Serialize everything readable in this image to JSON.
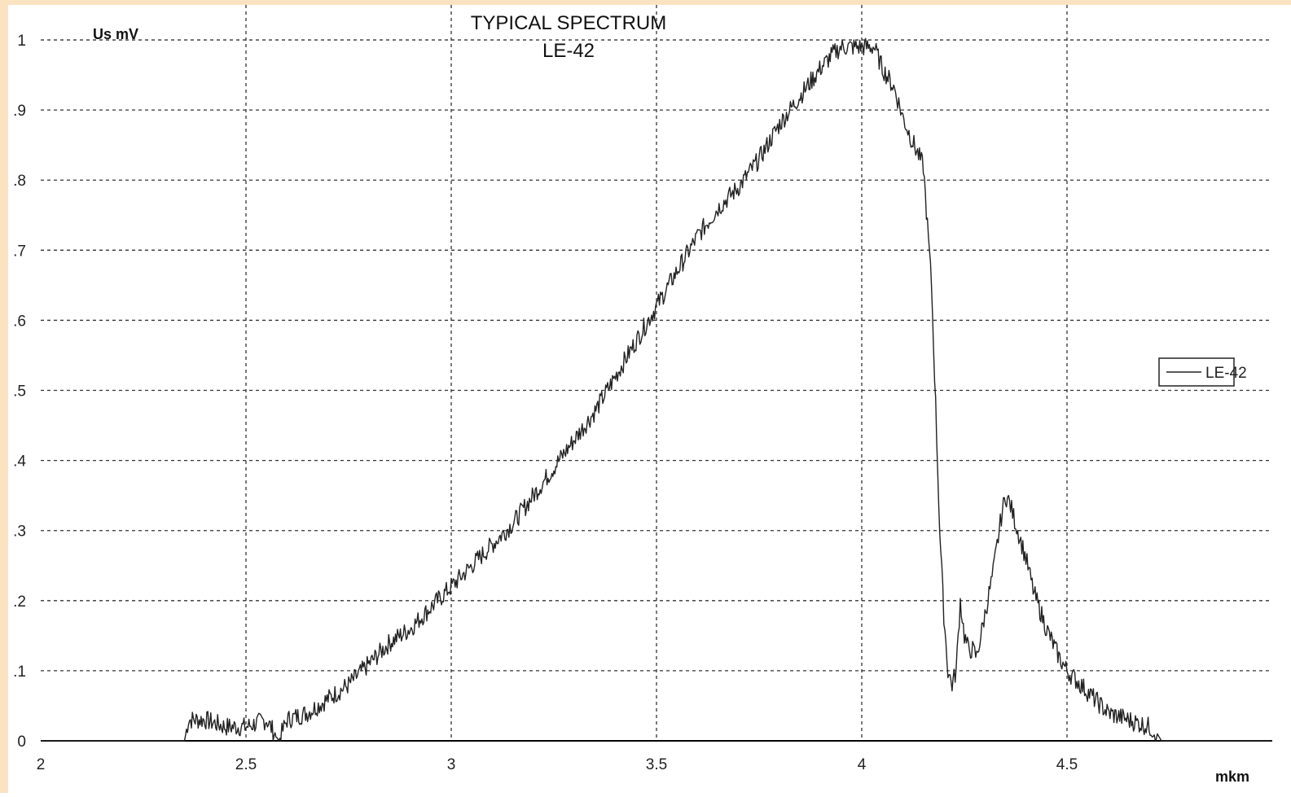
{
  "chart_data": {
    "type": "line",
    "title": "TYPICAL SPECTRUM",
    "subtitle": "LE-42",
    "ylabel": "Us mV",
    "xlabel": "mkm",
    "xlim": [
      2,
      5
    ],
    "ylim": [
      0,
      1.05
    ],
    "grid": true,
    "grid_style": "dotted",
    "legend_position": "right",
    "x_ticks": [
      {
        "value": 2,
        "label": "2"
      },
      {
        "value": 2.5,
        "label": "2.5"
      },
      {
        "value": 3,
        "label": "3"
      },
      {
        "value": 3.5,
        "label": "3.5"
      },
      {
        "value": 4,
        "label": "4"
      },
      {
        "value": 4.5,
        "label": "4.5"
      }
    ],
    "y_ticks": [
      {
        "value": 0,
        "label": "0"
      },
      {
        "value": 0.1,
        "label": ".1"
      },
      {
        "value": 0.2,
        "label": ".2"
      },
      {
        "value": 0.3,
        "label": ".3"
      },
      {
        "value": 0.4,
        "label": ".4"
      },
      {
        "value": 0.5,
        "label": ".5"
      },
      {
        "value": 0.6,
        "label": ".6"
      },
      {
        "value": 0.7,
        "label": ".7"
      },
      {
        "value": 0.8,
        "label": ".8"
      },
      {
        "value": 0.9,
        "label": ".9"
      },
      {
        "value": 1,
        "label": "1"
      }
    ],
    "series": [
      {
        "name": "LE-42",
        "color": "#222222",
        "x": [
          2.0,
          2.35,
          2.36,
          2.4,
          2.45,
          2.5,
          2.55,
          2.58,
          2.6,
          2.65,
          2.7,
          2.75,
          2.8,
          2.85,
          2.9,
          2.95,
          3.0,
          3.05,
          3.1,
          3.15,
          3.2,
          3.25,
          3.3,
          3.35,
          3.4,
          3.45,
          3.5,
          3.55,
          3.6,
          3.65,
          3.7,
          3.75,
          3.8,
          3.85,
          3.9,
          3.93,
          3.95,
          4.0,
          4.03,
          4.05,
          4.08,
          4.1,
          4.12,
          4.15,
          4.17,
          4.18,
          4.19,
          4.2,
          4.21,
          4.22,
          4.23,
          4.24,
          4.25,
          4.26,
          4.27,
          4.28,
          4.3,
          4.32,
          4.33,
          4.34,
          4.35,
          4.36,
          4.38,
          4.4,
          4.42,
          4.45,
          4.48,
          4.5,
          4.55,
          4.6,
          4.65,
          4.7,
          4.72,
          4.73,
          5.0
        ],
        "y": [
          0.0,
          0.0,
          0.03,
          0.03,
          0.02,
          0.02,
          0.03,
          0.0,
          0.03,
          0.04,
          0.06,
          0.08,
          0.11,
          0.14,
          0.16,
          0.19,
          0.22,
          0.25,
          0.28,
          0.31,
          0.35,
          0.39,
          0.43,
          0.47,
          0.52,
          0.57,
          0.62,
          0.67,
          0.72,
          0.76,
          0.79,
          0.83,
          0.88,
          0.92,
          0.96,
          0.98,
          0.99,
          0.99,
          0.99,
          0.96,
          0.93,
          0.89,
          0.86,
          0.82,
          0.65,
          0.48,
          0.3,
          0.18,
          0.1,
          0.08,
          0.1,
          0.2,
          0.15,
          0.13,
          0.13,
          0.12,
          0.18,
          0.24,
          0.28,
          0.32,
          0.35,
          0.34,
          0.3,
          0.26,
          0.21,
          0.16,
          0.12,
          0.1,
          0.07,
          0.04,
          0.03,
          0.02,
          0.01,
          0.0,
          0.0
        ]
      }
    ]
  }
}
